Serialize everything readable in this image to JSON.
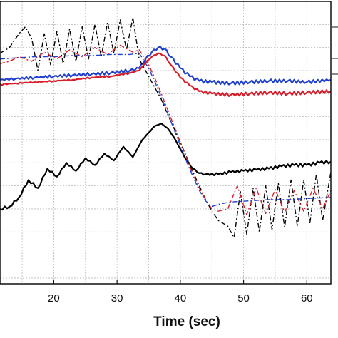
{
  "chart_data": {
    "type": "line",
    "title": "",
    "xlabel": "Time (sec)",
    "ylabel": "",
    "xlim": [
      11.5,
      63.8
    ],
    "grid": true,
    "x_ticks": [
      20,
      30,
      40,
      50,
      60
    ],
    "x_tick_labels": [
      "20",
      "30",
      "40",
      "50",
      "60"
    ],
    "legend": "top-right (partially visible)",
    "series": [
      {
        "color": "#1f3fd0",
        "style": "solid",
        "x": [
          11.5,
          14,
          17,
          20,
          23,
          26,
          29,
          32,
          33.5,
          34.5,
          35.5,
          36.5,
          37.5,
          38.5,
          40,
          41.5,
          43,
          45,
          48,
          51,
          54,
          57,
          60,
          63.8
        ],
        "y": [
          0.32,
          0.33,
          0.34,
          0.35,
          0.36,
          0.37,
          0.38,
          0.4,
          0.42,
          0.5,
          0.56,
          0.6,
          0.59,
          0.52,
          0.42,
          0.35,
          0.31,
          0.3,
          0.29,
          0.3,
          0.31,
          0.31,
          0.3,
          0.32
        ]
      },
      {
        "color": "#d81e2a",
        "style": "solid",
        "x": [
          11.5,
          14,
          17,
          20,
          23,
          26,
          29,
          32,
          33.5,
          34.5,
          35.5,
          36.5,
          37.5,
          38.5,
          40,
          41.5,
          43,
          45,
          48,
          51,
          54,
          57,
          60,
          63.8
        ],
        "y": [
          0.28,
          0.29,
          0.3,
          0.31,
          0.32,
          0.34,
          0.35,
          0.38,
          0.4,
          0.47,
          0.52,
          0.55,
          0.53,
          0.45,
          0.34,
          0.27,
          0.22,
          0.2,
          0.19,
          0.2,
          0.21,
          0.2,
          0.21,
          0.22
        ]
      },
      {
        "color": "#000000",
        "style": "solid",
        "x": [
          11.5,
          13,
          14.5,
          16,
          17.5,
          19,
          20.5,
          22,
          23.5,
          25,
          26.5,
          28,
          29.5,
          31,
          32.5,
          34,
          36,
          37,
          38,
          39,
          40,
          41,
          42,
          43,
          44,
          46,
          48,
          50,
          52,
          54,
          56,
          58,
          60,
          62,
          63.8
        ],
        "y": [
          -0.8,
          -0.78,
          -0.7,
          -0.55,
          -0.62,
          -0.45,
          -0.52,
          -0.4,
          -0.47,
          -0.36,
          -0.42,
          -0.32,
          -0.38,
          -0.26,
          -0.35,
          -0.2,
          -0.08,
          -0.06,
          -0.1,
          -0.18,
          -0.28,
          -0.38,
          -0.45,
          -0.49,
          -0.5,
          -0.5,
          -0.48,
          -0.47,
          -0.46,
          -0.45,
          -0.43,
          -0.42,
          -0.42,
          -0.4,
          -0.39
        ]
      },
      {
        "color": "#000000",
        "style": "dash-dot",
        "x": [
          11.5,
          13,
          14.5,
          15.5,
          16.5,
          17.5,
          18.5,
          19.5,
          20.5,
          21.5,
          22.5,
          23.5,
          24.5,
          25.5,
          26.5,
          27.5,
          28.5,
          29.5,
          30.5,
          31.5,
          32.5,
          33.5,
          35,
          36,
          37,
          38,
          39,
          40,
          41,
          42,
          43,
          44,
          45,
          46,
          47.5,
          48.5,
          49.5,
          50.5,
          51.5,
          52.5,
          53.5,
          54.5,
          55.5,
          56.5,
          57.5,
          58.5,
          59.5,
          60.5,
          61.5,
          62.5,
          63.8
        ],
        "y": [
          0.55,
          0.6,
          0.72,
          0.78,
          0.68,
          0.4,
          0.72,
          0.45,
          0.74,
          0.46,
          0.76,
          0.48,
          0.78,
          0.5,
          0.8,
          0.52,
          0.82,
          0.55,
          0.84,
          0.58,
          0.86,
          0.5,
          0.35,
          0.25,
          0.15,
          0.02,
          -0.1,
          -0.22,
          -0.35,
          -0.48,
          -0.6,
          -0.72,
          -0.82,
          -0.9,
          -0.95,
          -1.05,
          -0.65,
          -1.02,
          -0.62,
          -1.0,
          -0.6,
          -0.98,
          -0.58,
          -0.96,
          -0.55,
          -0.95,
          -0.55,
          -0.92,
          -0.5,
          -0.9,
          -0.48
        ]
      },
      {
        "color": "#d81e2a",
        "style": "dash-dot",
        "x": [
          11.5,
          13,
          14.5,
          16.5,
          18.5,
          20.5,
          22.5,
          24.5,
          26.5,
          28.5,
          30.5,
          32.5,
          33.5,
          35,
          36,
          37,
          38,
          39,
          40,
          41,
          42,
          43,
          44,
          45,
          46,
          47.5,
          49,
          50.5,
          52,
          53.5,
          55,
          56.5,
          58,
          59.5,
          61,
          62.5,
          63.8
        ],
        "y": [
          0.46,
          0.48,
          0.52,
          0.48,
          0.56,
          0.5,
          0.58,
          0.52,
          0.6,
          0.54,
          0.62,
          0.56,
          0.58,
          0.45,
          0.33,
          0.2,
          0.06,
          -0.08,
          -0.22,
          -0.36,
          -0.5,
          -0.62,
          -0.72,
          -0.8,
          -0.82,
          -0.8,
          -0.6,
          -0.85,
          -0.62,
          -0.84,
          -0.63,
          -0.83,
          -0.64,
          -0.82,
          -0.62,
          -0.8,
          -0.64
        ]
      },
      {
        "color": "#1f3fd0",
        "style": "dash-dot",
        "x": [
          11.5,
          14,
          17,
          20,
          23,
          26,
          29,
          32,
          33.5,
          35,
          36,
          37,
          38,
          39,
          40,
          41,
          42,
          43,
          44,
          45,
          46,
          48,
          51,
          54,
          57,
          60,
          63.8
        ],
        "y": [
          0.5,
          0.51,
          0.52,
          0.52,
          0.53,
          0.53,
          0.54,
          0.54,
          0.55,
          0.42,
          0.3,
          0.17,
          0.03,
          -0.11,
          -0.25,
          -0.39,
          -0.52,
          -0.64,
          -0.73,
          -0.78,
          -0.76,
          -0.74,
          -0.73,
          -0.72,
          -0.72,
          -0.71,
          -0.7
        ]
      }
    ]
  }
}
